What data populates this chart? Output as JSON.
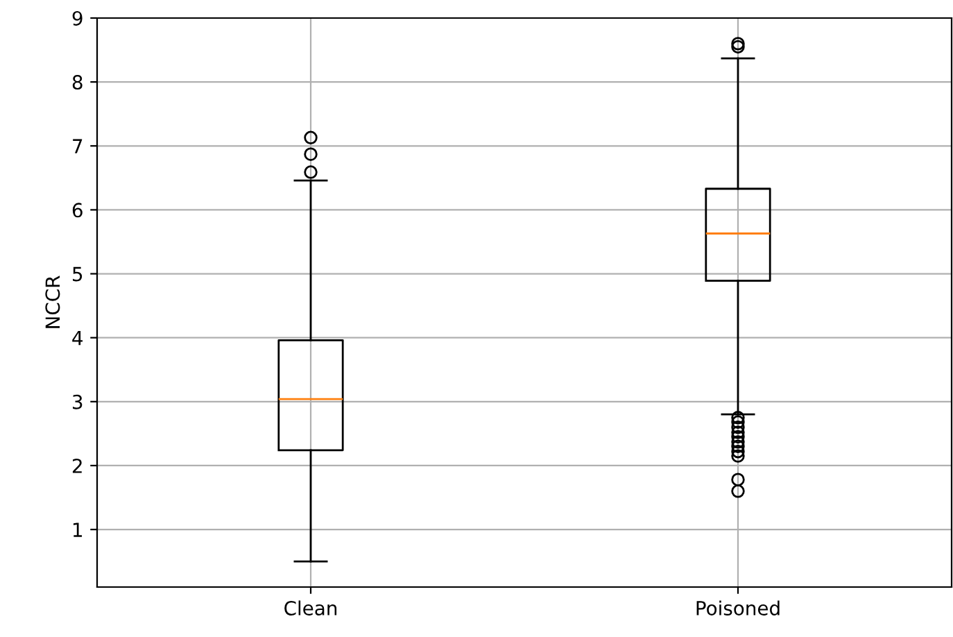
{
  "chart_data": {
    "type": "box",
    "ylabel": "NCCR",
    "categories": [
      "Clean",
      "Poisoned"
    ],
    "boxes": [
      {
        "low": 0.5,
        "q1": 2.24,
        "median": 3.04,
        "q3": 3.96,
        "high": 6.46,
        "outliers": [
          6.59,
          6.87,
          7.13
        ]
      },
      {
        "low": 2.8,
        "q1": 4.89,
        "median": 5.63,
        "q3": 6.33,
        "high": 8.37,
        "outliers": [
          8.55,
          8.6,
          2.75,
          2.68,
          2.6,
          2.52,
          2.45,
          2.37,
          2.3,
          2.22,
          2.15,
          1.78,
          1.6
        ]
      }
    ],
    "ylim": [
      0.1,
      9.0
    ],
    "yticks": [
      1,
      2,
      3,
      4,
      5,
      6,
      7,
      8,
      9
    ],
    "grid": true
  }
}
